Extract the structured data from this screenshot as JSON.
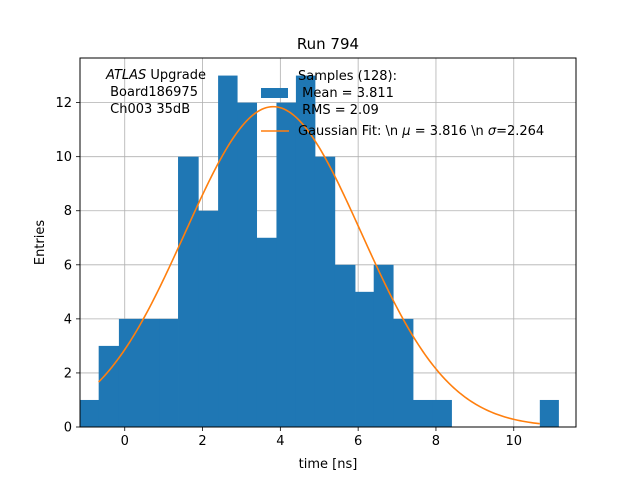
{
  "chart_data": {
    "type": "histogram",
    "title": "Run 794",
    "xlabel": "time [ns]",
    "ylabel": "Entries",
    "xlim": [
      -1.15,
      11.6
    ],
    "ylim": [
      0,
      13.65
    ],
    "xticks": [
      0,
      2,
      4,
      6,
      8,
      10
    ],
    "yticks": [
      0,
      2,
      4,
      6,
      8,
      10,
      12
    ],
    "grid": true,
    "bin_edges": [
      -1.15,
      -0.67,
      -0.15,
      0.37,
      0.89,
      1.37,
      1.89,
      2.4,
      2.89,
      3.39,
      3.9,
      4.4,
      4.89,
      5.4,
      5.92,
      6.4,
      6.9,
      7.41,
      7.92,
      8.4,
      8.92,
      9.4,
      9.9,
      10.42,
      10.67,
      11.15
    ],
    "bin_counts": [
      1,
      3,
      4,
      4,
      4,
      10,
      8,
      13,
      12,
      7,
      12,
      13,
      10,
      6,
      5,
      6,
      4,
      1,
      1,
      0,
      0,
      0,
      0,
      0,
      1
    ],
    "histogram_color": "#1f77b4",
    "fit": {
      "mu": 3.816,
      "sigma": 2.264,
      "amplitude": 11.85,
      "x_range": [
        -0.67,
        10.67
      ],
      "color": "#ff7f0e"
    },
    "annotation": {
      "line1_italic": "ATLAS",
      "line1_rest": " Upgrade",
      "line2": " Board186975",
      "line3": " Ch003 35dB"
    },
    "legend": {
      "position": "top-center",
      "hist_lines": [
        "Samples (128):",
        " Mean = 3.811",
        " RMS = 2.09"
      ],
      "fit_label_pre": "Gaussian Fit: \\n ",
      "fit_mu_symbol": "μ",
      "fit_mid": " = 3.816 \\n ",
      "fit_sigma_symbol": "σ",
      "fit_post": "=2.264"
    }
  }
}
